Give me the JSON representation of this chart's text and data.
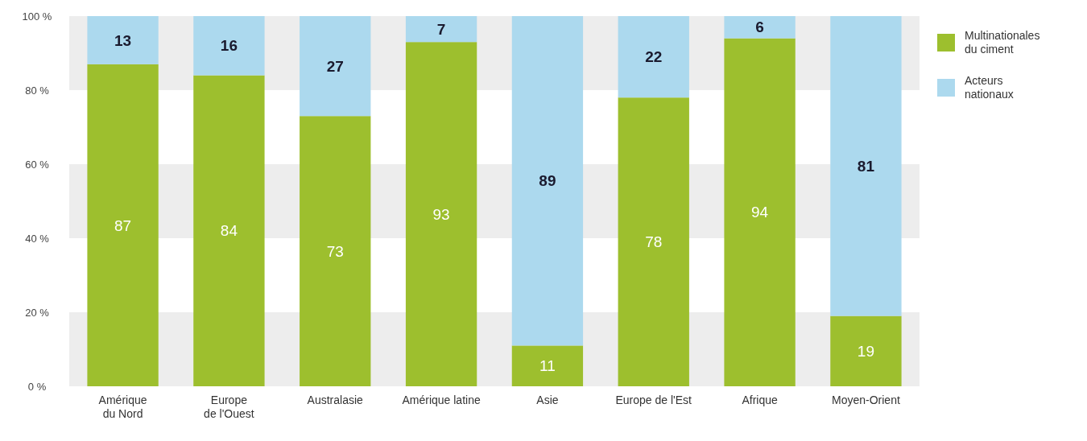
{
  "chart_data": {
    "type": "bar",
    "stacked": true,
    "categories": [
      "Amérique du Nord",
      "Europe de l'Ouest",
      "Australasie",
      "Amérique latine",
      "Asie",
      "Europe de l'Est",
      "Afrique",
      "Moyen-Orient"
    ],
    "series": [
      {
        "name": "Multinationales du ciment",
        "color": "#9dbf2e",
        "values": [
          87,
          84,
          73,
          93,
          11,
          78,
          94,
          19
        ]
      },
      {
        "name": "Acteurs nationaux",
        "color": "#acd9ee",
        "values": [
          13,
          16,
          27,
          7,
          89,
          22,
          6,
          81
        ]
      }
    ],
    "ylim": [
      0,
      100
    ],
    "yticks": [
      {
        "value": 0,
        "label": "0 %"
      },
      {
        "value": 20,
        "label": "20 %"
      },
      {
        "value": 40,
        "label": "40 %"
      },
      {
        "value": 60,
        "label": "60 %"
      },
      {
        "value": 80,
        "label": "80 %"
      },
      {
        "value": 100,
        "label": "100 %"
      }
    ],
    "bands": [
      {
        "axis": "y",
        "from": 0,
        "to": 20,
        "color": "#ededed"
      },
      {
        "axis": "y",
        "from": 40,
        "to": 60,
        "color": "#ededed"
      },
      {
        "axis": "y",
        "from": 80,
        "to": 100,
        "color": "#ededed"
      }
    ],
    "legend": "right",
    "data_labels": true
  }
}
